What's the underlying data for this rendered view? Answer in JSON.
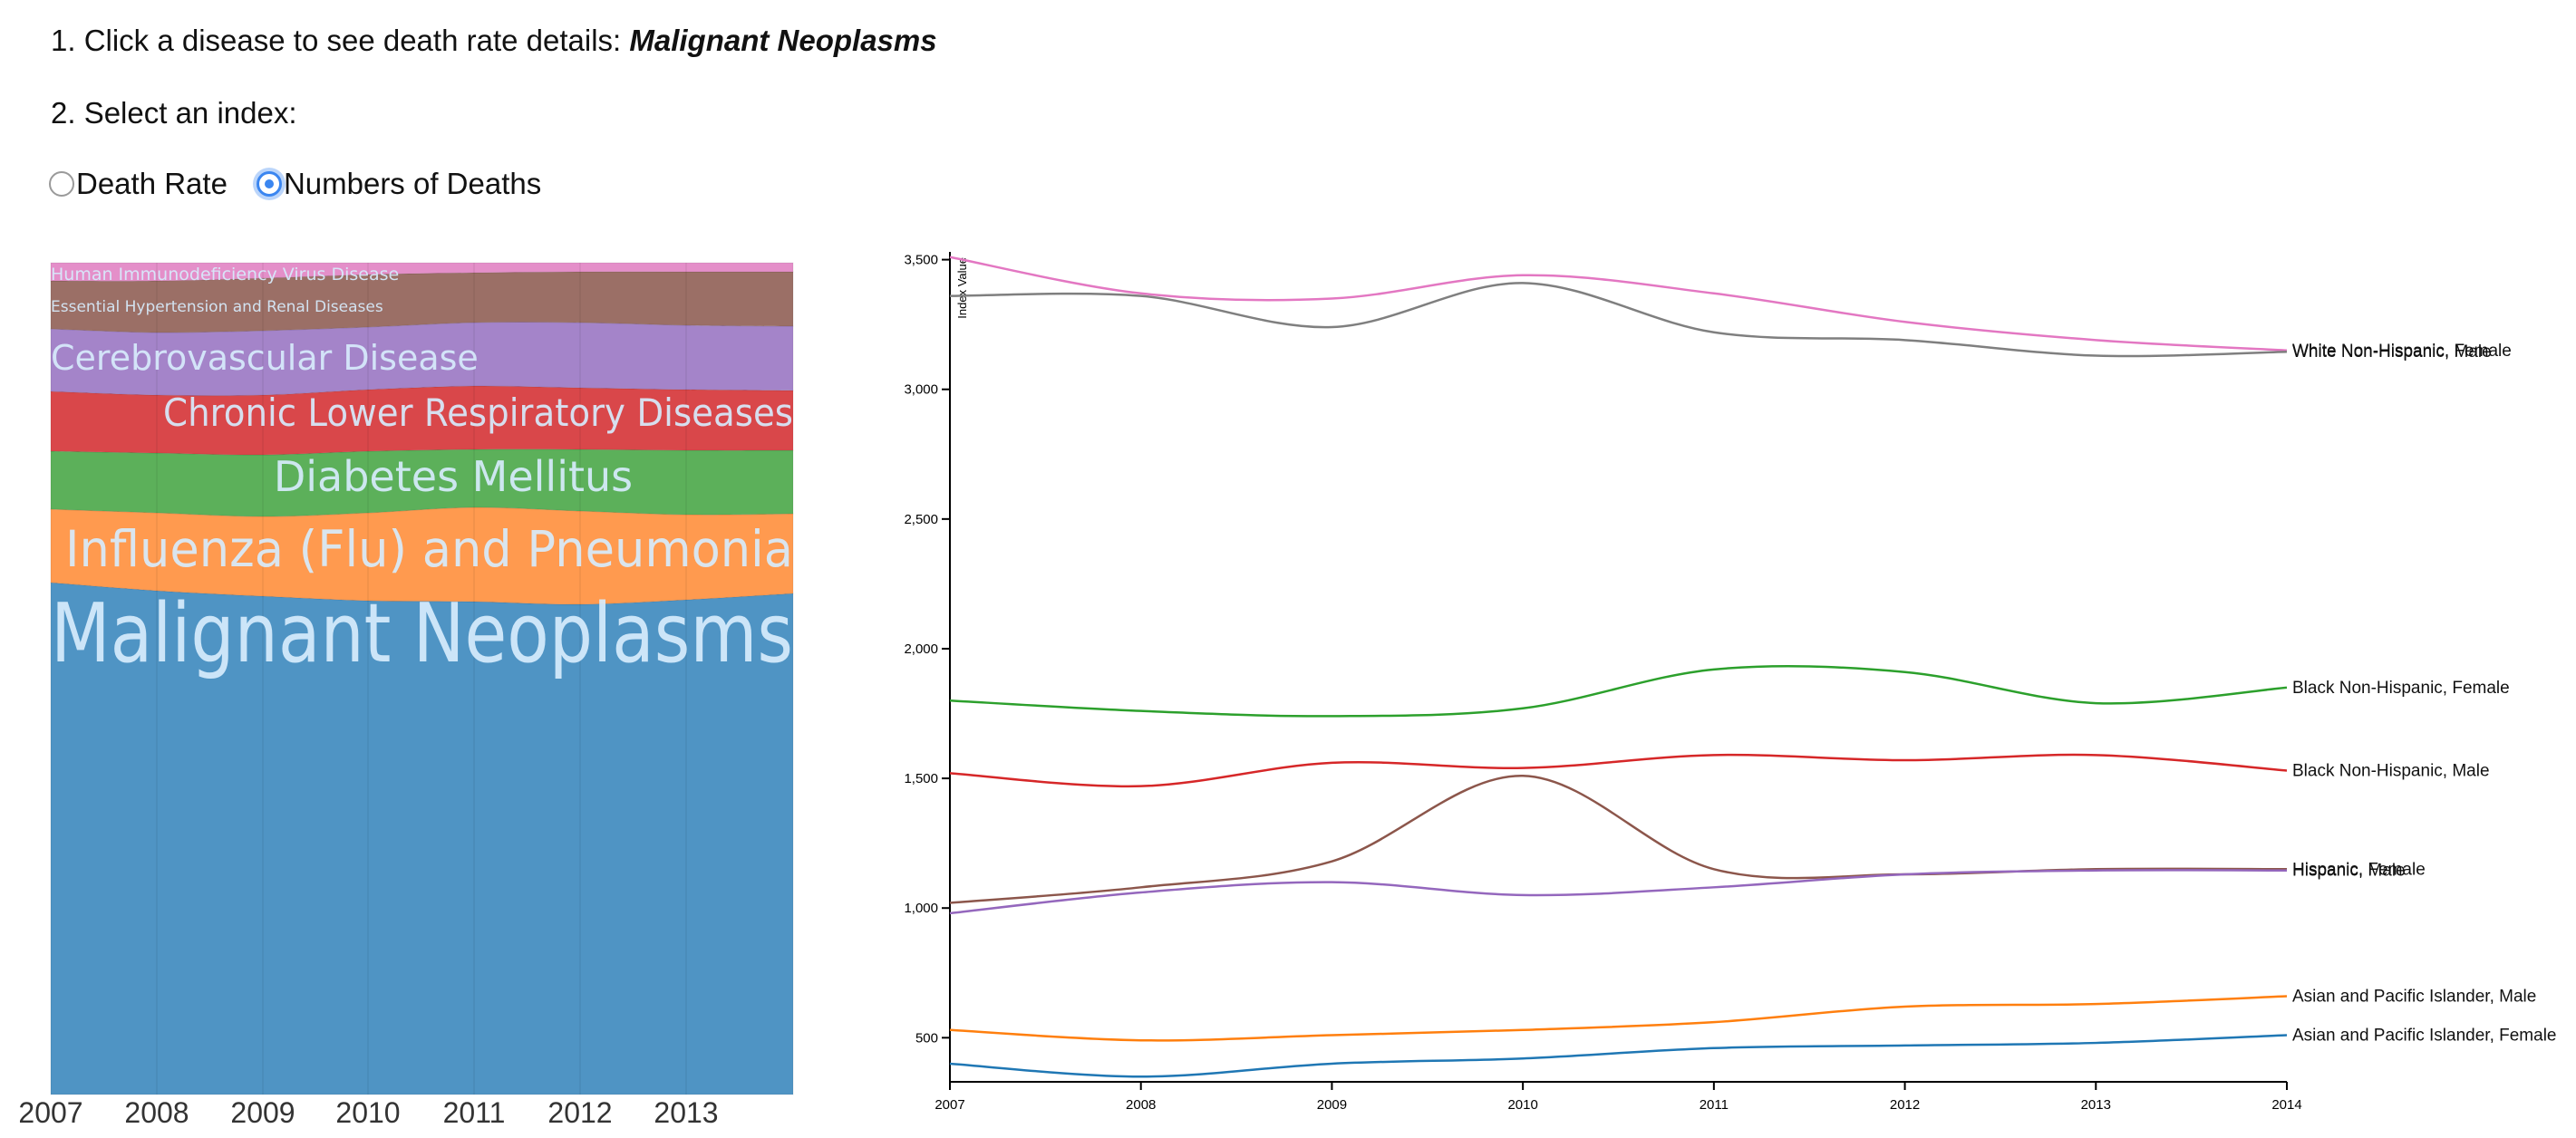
{
  "header": {
    "step1_prefix": "1. Click a disease to see death rate details:",
    "step1_selected": "Malignant Neoplasms",
    "step2": "2. Select an index:"
  },
  "index_options": {
    "selected": "Numbers of Deaths",
    "options": [
      {
        "label": "Death Rate",
        "checked": false
      },
      {
        "label": "Numbers of Deaths",
        "checked": true
      }
    ]
  },
  "chart_data": [
    {
      "type": "area",
      "subtype": "streamgraph",
      "x": [
        "2007",
        "2008",
        "2009",
        "2010",
        "2011",
        "2012",
        "2013"
      ],
      "series": [
        {
          "name": "Malignant Neoplasms",
          "color": "#4f94c4"
        },
        {
          "name": "Influenza (Flu) and Pneumonia",
          "color": "#ff9a4f"
        },
        {
          "name": "Diabetes Mellitus",
          "color": "#5cb05a"
        },
        {
          "name": "Chronic Lower Respiratory Diseases",
          "color": "#d9474a"
        },
        {
          "name": "Cerebrovascular Disease",
          "color": "#a484c9"
        },
        {
          "name": "Essential Hypertension and Renal Diseases",
          "color": "#9b6f66"
        },
        {
          "name": "Human Immunodeficiency Virus Disease",
          "color": "#e48fc9"
        }
      ],
      "selected": "Malignant Neoplasms"
    },
    {
      "type": "line",
      "ylabel": "Index Value",
      "x": [
        2007,
        2008,
        2009,
        2010,
        2011,
        2012,
        2013,
        2014
      ],
      "y_ticks": [
        "500",
        "1,000",
        "1,500",
        "2,000",
        "2,500",
        "3,000",
        "3,500"
      ],
      "ylim": [
        330,
        3530
      ],
      "grid": false,
      "series": [
        {
          "name": "White Non-Hispanic, Female",
          "color": "#e377c2",
          "values": [
            3510,
            3370,
            3350,
            3440,
            3370,
            3260,
            3190,
            3150
          ]
        },
        {
          "name": "White Non-Hispanic, Male",
          "color": "#7f7f7f",
          "values": [
            3360,
            3360,
            3240,
            3410,
            3220,
            3190,
            3130,
            3145
          ]
        },
        {
          "name": "Black Non-Hispanic, Female",
          "color": "#2ca02c",
          "values": [
            1800,
            1760,
            1740,
            1770,
            1920,
            1910,
            1790,
            1850
          ]
        },
        {
          "name": "Black Non-Hispanic, Male",
          "color": "#d62728",
          "values": [
            1520,
            1470,
            1560,
            1540,
            1590,
            1570,
            1590,
            1530
          ]
        },
        {
          "name": "Hispanic, Female",
          "color": "#8c564b",
          "values": [
            1020,
            1080,
            1180,
            1510,
            1150,
            1130,
            1150,
            1150
          ]
        },
        {
          "name": "Hispanic, Male",
          "color": "#9467bd",
          "values": [
            980,
            1060,
            1100,
            1050,
            1080,
            1130,
            1145,
            1145
          ]
        },
        {
          "name": "Asian and Pacific Islander, Male",
          "color": "#ff7f0e",
          "values": [
            530,
            490,
            510,
            530,
            560,
            620,
            630,
            660
          ]
        },
        {
          "name": "Asian and Pacific Islander, Female",
          "color": "#1f77b4",
          "values": [
            400,
            350,
            400,
            420,
            460,
            470,
            480,
            510
          ]
        }
      ]
    }
  ]
}
